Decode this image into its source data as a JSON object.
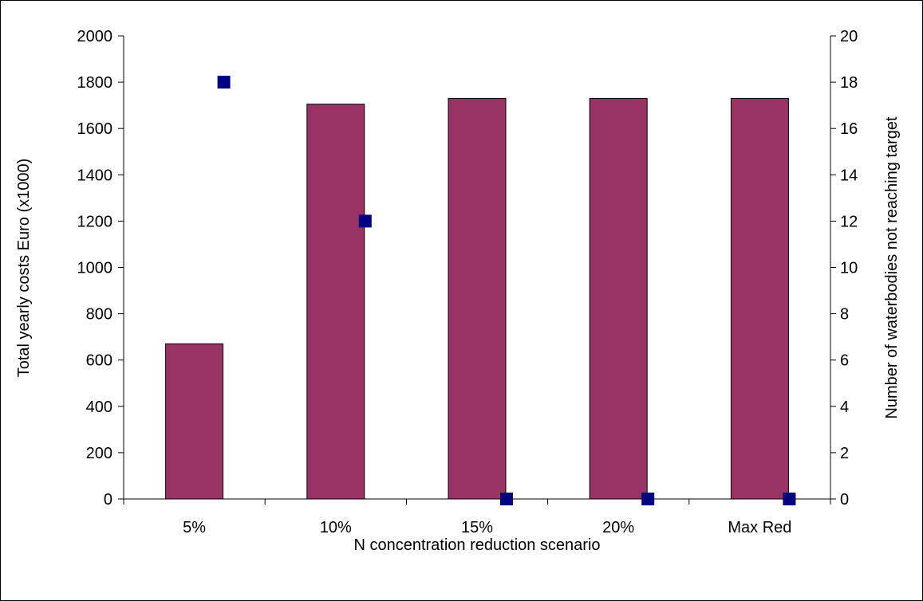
{
  "chart_data": {
    "type": "bar",
    "categories": [
      "5%",
      "10%",
      "15%",
      "20%",
      "Max Red"
    ],
    "series": [
      {
        "kind": "bar",
        "axis": "left",
        "values": [
          670,
          1705,
          1730,
          1730,
          1730
        ]
      },
      {
        "kind": "scatter",
        "axis": "right",
        "values": [
          18,
          12,
          0,
          0,
          0
        ]
      }
    ],
    "xlabel": "N concentration reduction scenario",
    "ylabel": "Total yearly costs Euro (x1000)",
    "y2label": "Number of waterbodies not reaching target",
    "ylim": [
      0,
      2000
    ],
    "y2lim": [
      0,
      20
    ],
    "yticks": [
      0,
      200,
      400,
      600,
      800,
      1000,
      1200,
      1400,
      1600,
      1800,
      2000
    ],
    "y2ticks": [
      0,
      2,
      4,
      6,
      8,
      10,
      12,
      14,
      16,
      18,
      20
    ],
    "grid": false,
    "legend": "none",
    "colors": {
      "bar": "#993366",
      "marker": "#000080",
      "axis": "#000000"
    }
  }
}
